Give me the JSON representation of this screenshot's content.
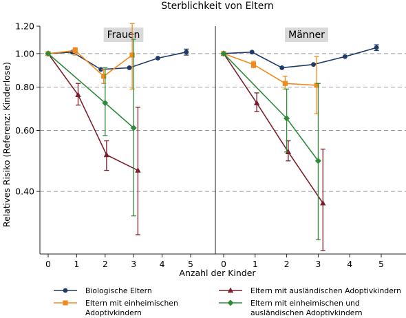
{
  "chart_data": {
    "type": "line",
    "title": "Sterblichkeit von Eltern",
    "xlabel": "Anzahl der Kinder",
    "ylabel": "Relatives Risiko (Referenz: Kinderlose)",
    "y_scale": "log",
    "ylim": [
      0.27,
      1.2
    ],
    "yticks": [
      {
        "value": 1.2,
        "label": "1.20"
      },
      {
        "value": 1.0,
        "label": "1.00"
      },
      {
        "value": 0.8,
        "label": "0.80"
      },
      {
        "value": 0.6,
        "label": "0.60"
      },
      {
        "value": 0.4,
        "label": "0.40"
      }
    ],
    "xticks": [
      0,
      1,
      2,
      3,
      4,
      5
    ],
    "xlim": [
      -0.3,
      5.3
    ],
    "grid": "dashed horizontal at 1.00, 0.80, 0.60, 0.40",
    "legend_position": "bottom",
    "series": [
      {
        "name": "Biologische Eltern",
        "color": "#1f3a66",
        "marker": "circle"
      },
      {
        "name": "Eltern mit ausländischen Adoptivkindern",
        "color": "#7a1f2b",
        "marker": "triangle"
      },
      {
        "name": "Eltern mit einheimischen Adoptivkindern",
        "color": "#f08a1c",
        "marker": "square"
      },
      {
        "name": "Eltern mit einheimischen und ausländischen Adoptivkindern",
        "color": "#2e8b3a",
        "marker": "diamond"
      }
    ],
    "panels": [
      {
        "label": "Frauen",
        "series": [
          {
            "points": [
              {
                "x": 0,
                "y": 1.0
              },
              {
                "x": 0.85,
                "y": 1.01
              },
              {
                "x": 1.85,
                "y": 0.9
              },
              {
                "x": 2.85,
                "y": 0.91
              },
              {
                "x": 3.85,
                "y": 0.97
              },
              {
                "x": 4.85,
                "y": 1.01,
                "lo": 0.99,
                "hi": 1.03
              }
            ]
          },
          {
            "points": [
              {
                "x": 0,
                "y": 1.0
              },
              {
                "x": 1.05,
                "y": 0.76,
                "lo": 0.71,
                "hi": 0.82
              },
              {
                "x": 2.05,
                "y": 0.51,
                "lo": 0.46,
                "hi": 0.56
              },
              {
                "x": 3.15,
                "y": 0.46,
                "lo": 0.3,
                "hi": 0.7
              }
            ]
          },
          {
            "points": [
              {
                "x": 0,
                "y": 1.0
              },
              {
                "x": 0.95,
                "y": 1.02,
                "lo": 0.99,
                "hi": 1.04
              },
              {
                "x": 1.95,
                "y": 0.86,
                "lo": 0.82,
                "hi": 0.9
              },
              {
                "x": 2.95,
                "y": 0.99,
                "lo": 0.79,
                "hi": 1.22
              }
            ]
          },
          {
            "points": [
              {
                "x": 0,
                "y": 1.0
              },
              {
                "x": 2.0,
                "y": 0.72,
                "lo": 0.58,
                "hi": 0.91
              },
              {
                "x": 3.0,
                "y": 0.61,
                "lo": 0.34,
                "hi": 1.1
              }
            ]
          }
        ]
      },
      {
        "label": "Männer",
        "series": [
          {
            "points": [
              {
                "x": 0,
                "y": 1.0
              },
              {
                "x": 0.9,
                "y": 1.01
              },
              {
                "x": 1.85,
                "y": 0.91
              },
              {
                "x": 2.85,
                "y": 0.93
              },
              {
                "x": 3.85,
                "y": 0.98
              },
              {
                "x": 4.85,
                "y": 1.04,
                "lo": 1.02,
                "hi": 1.06
              }
            ]
          },
          {
            "points": [
              {
                "x": 0,
                "y": 1.0
              },
              {
                "x": 1.05,
                "y": 0.72,
                "lo": 0.68,
                "hi": 0.77
              },
              {
                "x": 2.05,
                "y": 0.52,
                "lo": 0.49,
                "hi": 0.56
              },
              {
                "x": 3.15,
                "y": 0.37,
                "lo": 0.27,
                "hi": 0.53
              }
            ]
          },
          {
            "points": [
              {
                "x": 0,
                "y": 1.0
              },
              {
                "x": 0.95,
                "y": 0.93,
                "lo": 0.91,
                "hi": 0.95
              },
              {
                "x": 1.95,
                "y": 0.82,
                "lo": 0.79,
                "hi": 0.86
              },
              {
                "x": 2.95,
                "y": 0.81,
                "lo": 0.67,
                "hi": 0.98
              }
            ]
          },
          {
            "points": [
              {
                "x": 0,
                "y": 1.0
              },
              {
                "x": 2.0,
                "y": 0.65,
                "lo": 0.52,
                "hi": 0.79
              },
              {
                "x": 3.0,
                "y": 0.49,
                "lo": 0.29,
                "hi": 0.82
              }
            ]
          }
        ]
      }
    ]
  }
}
